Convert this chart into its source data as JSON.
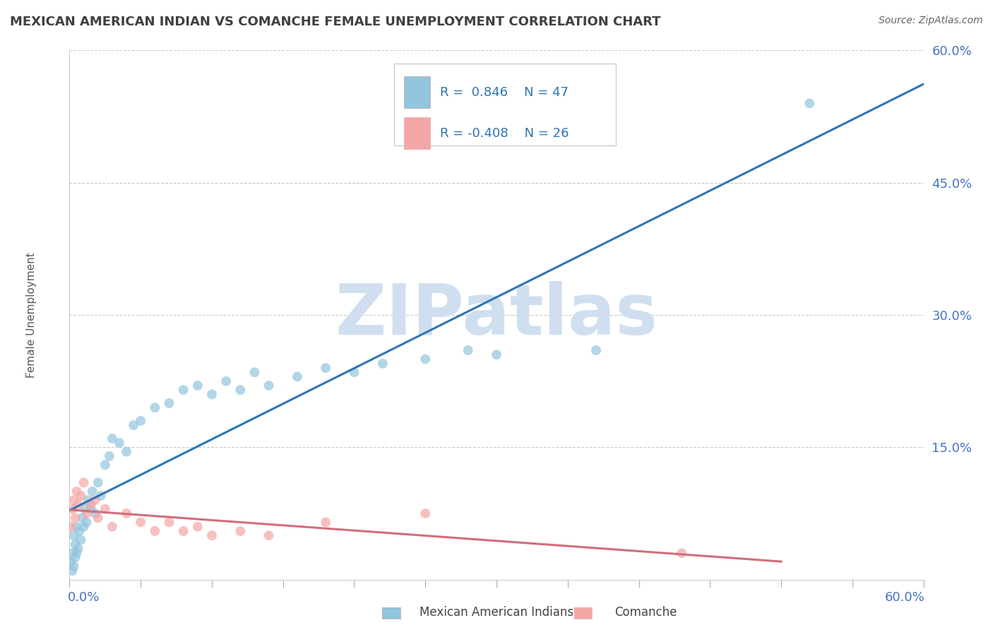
{
  "title": "MEXICAN AMERICAN INDIAN VS COMANCHE FEMALE UNEMPLOYMENT CORRELATION CHART",
  "source": "Source: ZipAtlas.com",
  "ylabel": "Female Unemployment",
  "xlim": [
    0.0,
    0.6
  ],
  "ylim": [
    0.0,
    0.6
  ],
  "blue_R": 0.846,
  "blue_N": 47,
  "pink_R": -0.408,
  "pink_N": 26,
  "blue_color": "#92c5de",
  "pink_color": "#f4a6a6",
  "blue_line_color": "#2e75b6",
  "pink_line_color": "#d06f7a",
  "watermark": "ZIPatlas",
  "watermark_color": "#d0dff0",
  "legend_label_blue": "Mexican American Indians",
  "legend_label_pink": "Comanche",
  "background_color": "#ffffff",
  "grid_color": "#c8c8c8",
  "title_color": "#404040",
  "axis_label_color": "#4472c4",
  "blue_scatter_x": [
    0.001,
    0.002,
    0.002,
    0.003,
    0.003,
    0.004,
    0.004,
    0.005,
    0.005,
    0.006,
    0.007,
    0.008,
    0.009,
    0.01,
    0.011,
    0.012,
    0.013,
    0.015,
    0.016,
    0.018,
    0.02,
    0.022,
    0.025,
    0.028,
    0.03,
    0.035,
    0.04,
    0.045,
    0.05,
    0.06,
    0.07,
    0.08,
    0.09,
    0.1,
    0.11,
    0.12,
    0.13,
    0.14,
    0.16,
    0.18,
    0.2,
    0.22,
    0.25,
    0.28,
    0.3,
    0.37,
    0.52
  ],
  "blue_scatter_y": [
    0.02,
    0.01,
    0.03,
    0.015,
    0.05,
    0.025,
    0.04,
    0.03,
    0.06,
    0.035,
    0.055,
    0.045,
    0.07,
    0.06,
    0.08,
    0.065,
    0.09,
    0.08,
    0.1,
    0.075,
    0.11,
    0.095,
    0.13,
    0.14,
    0.16,
    0.155,
    0.145,
    0.175,
    0.18,
    0.195,
    0.2,
    0.215,
    0.22,
    0.21,
    0.225,
    0.215,
    0.235,
    0.22,
    0.23,
    0.24,
    0.235,
    0.245,
    0.25,
    0.26,
    0.255,
    0.26,
    0.54
  ],
  "pink_scatter_x": [
    0.001,
    0.002,
    0.003,
    0.004,
    0.005,
    0.006,
    0.008,
    0.01,
    0.012,
    0.015,
    0.018,
    0.02,
    0.025,
    0.03,
    0.04,
    0.05,
    0.06,
    0.07,
    0.08,
    0.09,
    0.1,
    0.12,
    0.14,
    0.18,
    0.25,
    0.43
  ],
  "pink_scatter_y": [
    0.06,
    0.08,
    0.09,
    0.07,
    0.1,
    0.085,
    0.095,
    0.11,
    0.075,
    0.085,
    0.09,
    0.07,
    0.08,
    0.06,
    0.075,
    0.065,
    0.055,
    0.065,
    0.055,
    0.06,
    0.05,
    0.055,
    0.05,
    0.065,
    0.075,
    0.03
  ]
}
